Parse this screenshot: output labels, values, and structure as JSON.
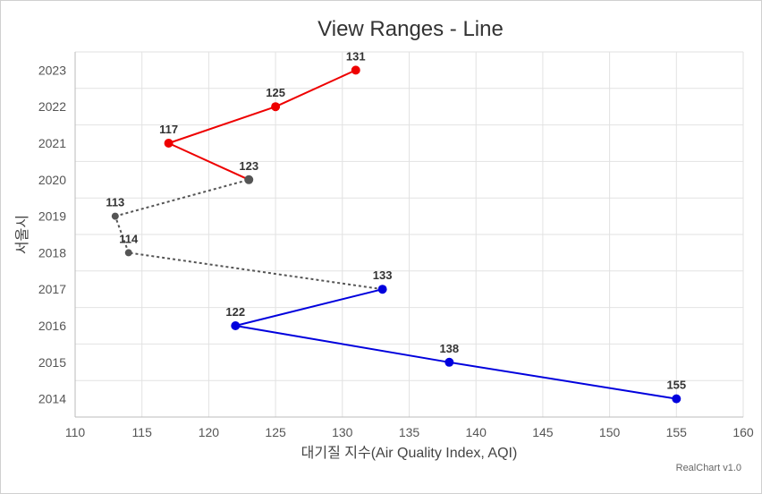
{
  "chart_data": {
    "type": "line",
    "title": "View Ranges - Line",
    "xlabel": "대기질 지수(Air Quality Index, AQI)",
    "ylabel": "서울시",
    "xlim": [
      110,
      160
    ],
    "x_ticks": [
      "110",
      "115",
      "120",
      "125",
      "130",
      "135",
      "140",
      "145",
      "150",
      "155",
      "160"
    ],
    "categories": [
      "2014",
      "2015",
      "2016",
      "2017",
      "2018",
      "2019",
      "2020",
      "2021",
      "2022",
      "2023"
    ],
    "values": [
      155,
      138,
      122,
      133,
      114,
      113,
      123,
      117,
      125,
      131
    ],
    "ranges": [
      {
        "from": 0,
        "to": 3,
        "color": "#0000dd",
        "style": "solid"
      },
      {
        "from": 3,
        "to": 6,
        "color": "#555555",
        "style": "dashed"
      },
      {
        "from": 6,
        "to": 9,
        "color": "#ee0000",
        "style": "solid"
      }
    ],
    "grid": true,
    "credit": "RealChart v1.0"
  }
}
